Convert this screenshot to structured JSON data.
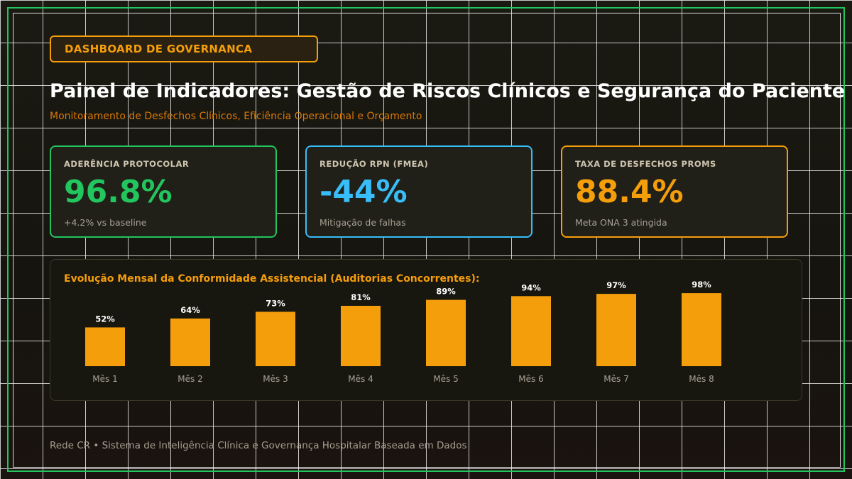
{
  "header": {
    "tag": "DASHBOARD DE GOVERNANCA",
    "title": "Painel de Indicadores: Gestão de Riscos Clínicos e Segurança do Paciente",
    "subtitle": "Monitoramento de Desfechos Clínicos, Eficiência Operacional e Orçamento"
  },
  "kpis": [
    {
      "label": "ADERÊNCIA PROTOCOLAR",
      "value": "96.8%",
      "note": "+4.2% vs baseline",
      "color": "#22c55e"
    },
    {
      "label": "REDUÇÃO RPN (FMEA)",
      "value": "-44%",
      "note": "Mitigação de falhas",
      "color": "#38bdf8"
    },
    {
      "label": "TAXA DE DESFECHOS PROMS",
      "value": "88.4%",
      "note": "Meta ONA 3 atingida",
      "color": "#f59e0b"
    }
  ],
  "chart_data": {
    "type": "bar",
    "title": "Evolução Mensal da Conformidade Assistencial (Auditorias Concorrentes):",
    "categories": [
      "Mês 1",
      "Mês 2",
      "Mês 3",
      "Mês 4",
      "Mês 5",
      "Mês 6",
      "Mês 7",
      "Mês 8"
    ],
    "values": [
      52,
      64,
      73,
      81,
      89,
      94,
      97,
      98
    ],
    "value_labels": [
      "52%",
      "64%",
      "73%",
      "81%",
      "89%",
      "94%",
      "97%",
      "98%"
    ],
    "ylim": [
      0,
      100
    ],
    "bar_color": "#f59e0b",
    "grid": false
  },
  "footer": {
    "text": "Rede CR • Sistema de Inteligência Clínica e Governança Hospitalar Baseada em Dados"
  }
}
